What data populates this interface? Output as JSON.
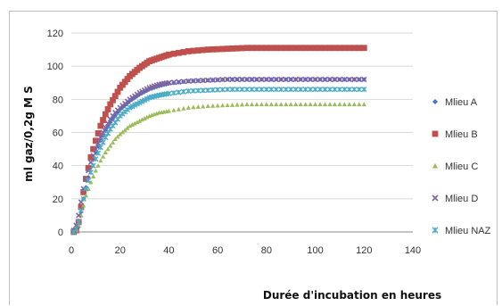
{
  "chart_data": {
    "type": "scatter",
    "title": "",
    "xlabel": "Durée d'incubation en heures",
    "ylabel": "ml gaz/0,2g  M S",
    "xlim": [
      0,
      140
    ],
    "ylim": [
      0,
      120
    ],
    "xticks": [
      "0",
      "20",
      "40",
      "60",
      "80",
      "100",
      "120",
      "140"
    ],
    "yticks": [
      "0",
      "20",
      "40",
      "60",
      "80",
      "100",
      "120"
    ],
    "grid": "horizontal",
    "legend_position": "right",
    "x": [
      1,
      2,
      3,
      4,
      5,
      6,
      8,
      10,
      12,
      14,
      16,
      18,
      20,
      24,
      28,
      32,
      36,
      40,
      48,
      56,
      64,
      72,
      80,
      90,
      100,
      110,
      120
    ],
    "series": [
      {
        "name": "Mlieu A",
        "color": "#4472c4",
        "marker": "diamond",
        "values": [
          0,
          1,
          3,
          12,
          20,
          27,
          39,
          48,
          55,
          61,
          66,
          70,
          74,
          79,
          83,
          86,
          88,
          89.5,
          91,
          91.5,
          92,
          92,
          92,
          92,
          92,
          92,
          92
        ]
      },
      {
        "name": "Mlieu B",
        "color": "#c0504d",
        "marker": "square",
        "values": [
          0,
          1,
          6,
          15,
          24,
          32,
          45,
          55,
          64,
          71,
          77,
          82,
          87,
          94,
          99,
          103,
          105,
          107,
          109,
          110,
          110.5,
          111,
          111,
          111,
          111,
          111,
          111
        ]
      },
      {
        "name": "Mlieu C",
        "color": "#9bbb59",
        "marker": "triangle",
        "values": [
          0,
          1,
          4,
          10,
          16,
          22,
          30,
          37,
          43,
          48,
          52,
          56,
          59,
          64,
          67,
          70,
          72,
          73,
          75,
          76,
          76.5,
          77,
          77,
          77,
          77,
          77,
          77
        ]
      },
      {
        "name": "Mlieu D",
        "color": "#8064a2",
        "marker": "x",
        "values": [
          1,
          4,
          10,
          18,
          26,
          32,
          42,
          50,
          57,
          63,
          68,
          72,
          75,
          80,
          84,
          87,
          89,
          90,
          91,
          91.5,
          92,
          92,
          92,
          92,
          92,
          92,
          92
        ]
      },
      {
        "name": "Mlieu NAZ",
        "color": "#4bacc6",
        "marker": "star",
        "values": [
          0,
          2,
          6,
          13,
          20,
          26,
          36,
          44,
          51,
          57,
          62,
          66,
          70,
          75,
          78,
          81,
          82.5,
          83.5,
          85,
          85.5,
          86,
          86,
          86,
          86,
          86,
          86,
          86
        ]
      }
    ]
  }
}
